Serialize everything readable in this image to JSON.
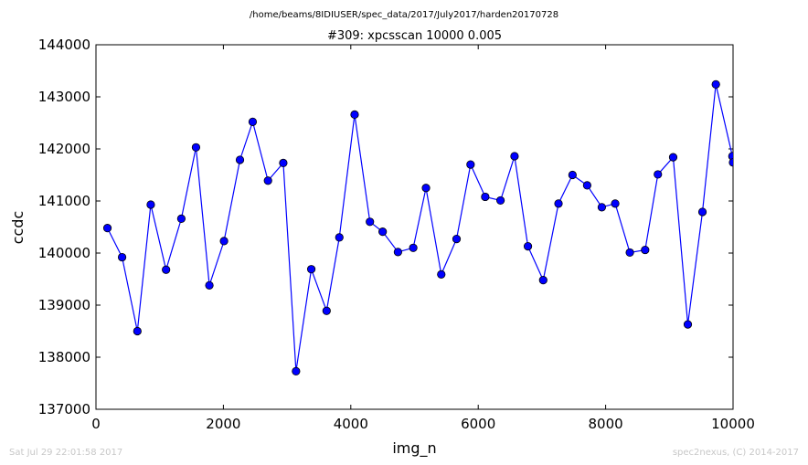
{
  "chart_data": {
    "type": "line",
    "suptitle": "/home/beams/8IDIUSER/spec_data/2017/July2017/harden20170728",
    "title": "#309: xpcsscan 10000 0.005",
    "xlabel": "img_n",
    "ylabel": "ccdc",
    "xlim": [
      0,
      10000
    ],
    "ylim": [
      137000,
      144000
    ],
    "x_ticks": [
      0,
      2000,
      4000,
      6000,
      8000,
      10000
    ],
    "y_ticks": [
      137000,
      138000,
      139000,
      140000,
      141000,
      142000,
      143000,
      144000
    ],
    "x_tick_labels": [
      "0",
      "2000",
      "4000",
      "6000",
      "8000",
      "10000"
    ],
    "y_tick_labels": [
      "137000",
      "138000",
      "139000",
      "140000",
      "141000",
      "142000",
      "143000",
      "144000"
    ],
    "grid": false,
    "line_color": "#0000ff",
    "marker_color": "#0000ff",
    "series": [
      {
        "x": [
          180,
          410,
          650,
          860,
          1100,
          1340,
          1570,
          1780,
          2010,
          2260,
          2460,
          2700,
          2940,
          3140,
          3380,
          3620,
          3820,
          4060,
          4300,
          4500,
          4740,
          4980,
          5180,
          5420,
          5660,
          5880,
          6110,
          6350,
          6570,
          6780,
          7020,
          7260,
          7480,
          7710,
          7940,
          8150,
          8380,
          8620,
          8820,
          9060,
          9290,
          9520,
          9730,
          9990,
          10000
        ],
        "values": [
          140480,
          139920,
          138500,
          140930,
          139680,
          140660,
          142030,
          139380,
          140230,
          141790,
          142520,
          141390,
          141730,
          137730,
          139690,
          138890,
          140300,
          142660,
          140600,
          140410,
          140020,
          140100,
          141250,
          139590,
          140270,
          141700,
          141080,
          141010,
          141860,
          140130,
          139480,
          140950,
          141500,
          141300,
          140880,
          140950,
          140010,
          140060,
          141510,
          141840,
          138630,
          140790,
          143240,
          141860,
          141740
        ]
      }
    ]
  },
  "footer": {
    "left": "Sat Jul 29 22:01:58 2017",
    "right": "spec2nexus, (C) 2014-2017"
  }
}
